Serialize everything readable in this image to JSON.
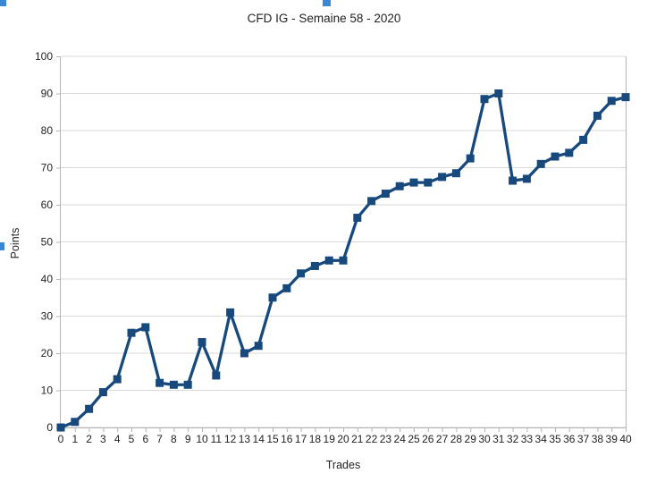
{
  "chart_object": {
    "state": "selected",
    "background": "#ffffff"
  },
  "selection": {
    "handle_color": "#3a87d4",
    "handles_visible": [
      "top-left",
      "top-middle",
      "left-middle"
    ]
  },
  "chart_data": {
    "type": "line",
    "title": "CFD IG - Semaine 58 - 2020",
    "xlabel": "Trades",
    "ylabel": "Points",
    "x": [
      0,
      1,
      2,
      3,
      4,
      5,
      6,
      7,
      8,
      9,
      10,
      11,
      12,
      13,
      14,
      15,
      16,
      17,
      18,
      19,
      20,
      21,
      22,
      23,
      24,
      25,
      26,
      27,
      28,
      29,
      30,
      31,
      32,
      33,
      34,
      35,
      36,
      37,
      38,
      39,
      40
    ],
    "series": [
      {
        "name": "Points",
        "values": [
          0,
          1.5,
          5,
          9.5,
          13,
          25.5,
          27,
          12,
          11.5,
          11.5,
          23,
          14,
          31,
          20,
          22,
          35,
          37.5,
          41.5,
          43.5,
          45,
          45,
          56.5,
          61,
          63,
          65,
          66,
          66,
          67.5,
          68.5,
          72.5,
          88.5,
          90,
          66.5,
          67,
          71,
          73,
          74,
          77.5,
          84,
          88,
          89
        ]
      }
    ],
    "ylim": [
      0,
      100
    ],
    "y_ticks": [
      0,
      10,
      20,
      30,
      40,
      50,
      60,
      70,
      80,
      90,
      100
    ],
    "grid": "horizontal",
    "legend": "none",
    "marker": "square",
    "series_color": "#17497d",
    "gridline_color": "#d9d9d9",
    "axis_color": "#b3b3b3",
    "text_color": "#222222"
  }
}
